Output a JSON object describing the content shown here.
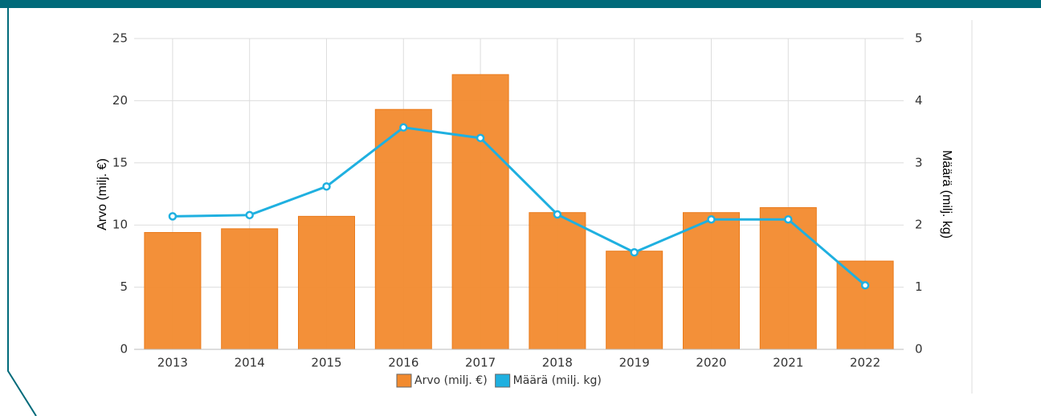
{
  "chart_data": {
    "type": "combo",
    "categories": [
      "2013",
      "2014",
      "2015",
      "2016",
      "2017",
      "2018",
      "2019",
      "2020",
      "2021",
      "2022"
    ],
    "series": [
      {
        "name": "Arvo (milj. €)",
        "type": "bar",
        "color": "#f28a2e",
        "values": [
          9.4,
          9.7,
          10.7,
          19.3,
          22.1,
          11.0,
          7.9,
          11.0,
          11.4,
          7.1
        ]
      },
      {
        "name": "Määrä (milj. kg)",
        "type": "line",
        "axis": "y2",
        "color": "#1fb0e0",
        "values": [
          2.14,
          2.16,
          2.62,
          3.57,
          3.4,
          2.17,
          1.56,
          2.09,
          2.09,
          1.03
        ]
      }
    ],
    "ylabel": "Arvo (milj. €)",
    "y2label": "Määrä (milj. kg)",
    "ylim": [
      0,
      25
    ],
    "yticks": [
      0,
      5,
      10,
      15,
      20,
      25
    ],
    "y2lim": [
      0,
      5
    ],
    "y2ticks": [
      0,
      1,
      2,
      3,
      4,
      5
    ],
    "grid": true,
    "legend": "bottom"
  }
}
